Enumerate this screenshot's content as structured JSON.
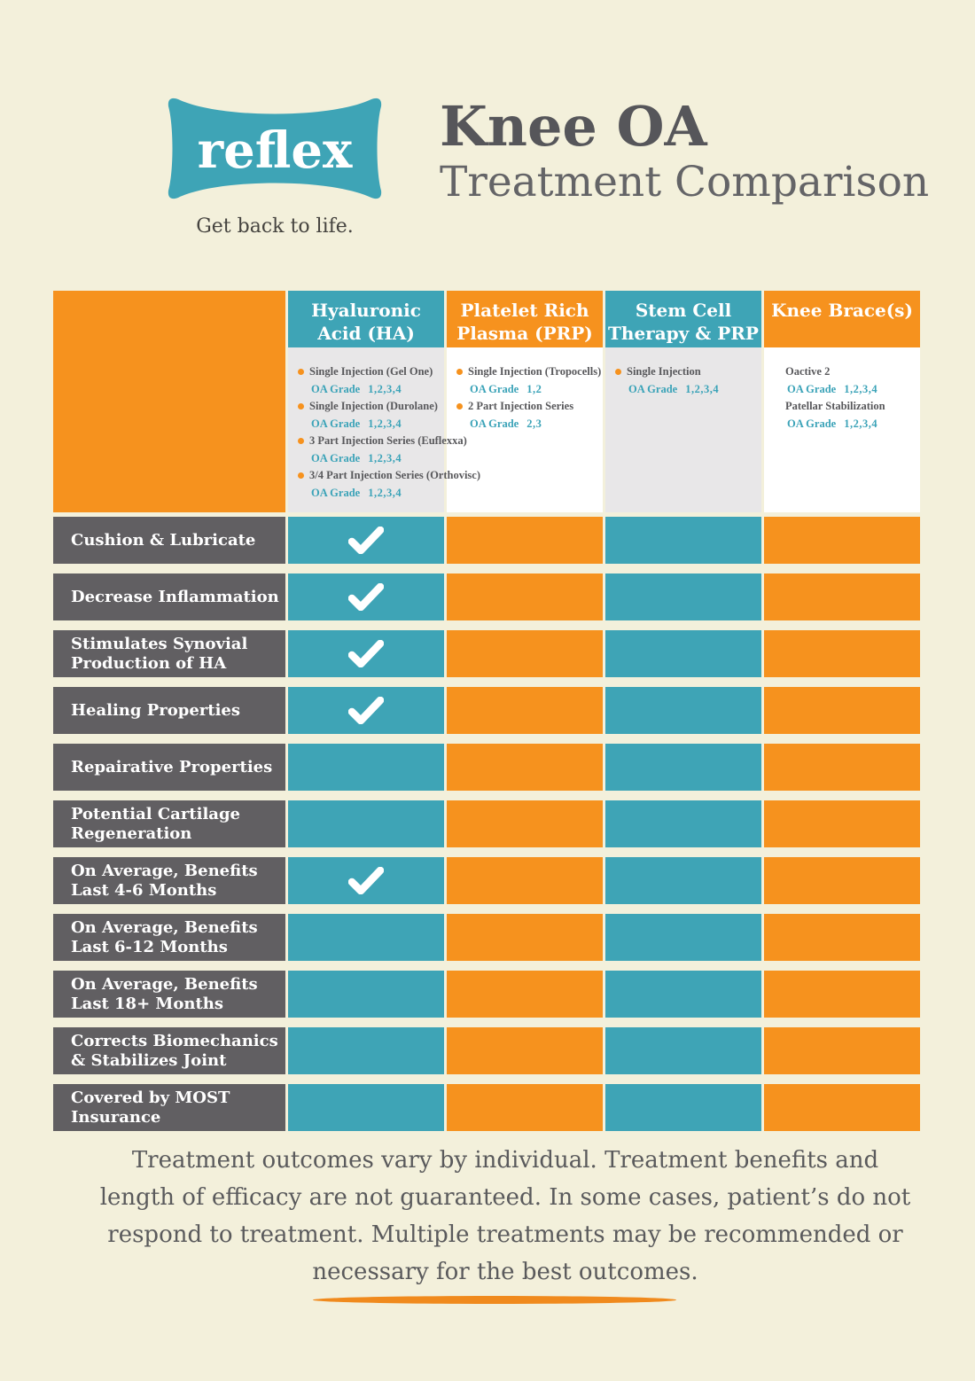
{
  "colors": {
    "orange": "#F6921E",
    "orange_dark": "#F08A1D",
    "teal": "#3EA4B6",
    "dark_gray_cell": "#615F62",
    "panel_gray": "#E8E7E8",
    "panel_white": "#FFFFFF",
    "item_text": "#58585B",
    "grade_text": "#3BA3B8",
    "check": "#FFFFFF",
    "background": "#F3F0DB"
  },
  "header": {
    "logo_text": "reflex",
    "tagline": "Get back to life.",
    "title": "Knee OA",
    "subtitle": "Treatment Comparison"
  },
  "table": {
    "columns": [
      {
        "id": "ha",
        "title_lines": [
          "Hyaluronic",
          "Acid (HA)"
        ],
        "header_color": "teal",
        "panel_color": "gray",
        "items": [
          {
            "bullet": true,
            "label": "Single Injection (Gel One)",
            "grade_label": "OA Grade",
            "grade_values": "1,2,3,4"
          },
          {
            "bullet": true,
            "label": "Single Injection (Durolane)",
            "grade_label": "OA Grade",
            "grade_values": "1,2,3,4"
          },
          {
            "bullet": true,
            "label": "3 Part Injection Series (Euflexxa)",
            "grade_label": "OA Grade",
            "grade_values": "1,2,3,4"
          },
          {
            "bullet": true,
            "label": "3/4 Part Injection Series (Orthovisc)",
            "grade_label": "OA Grade",
            "grade_values": "1,2,3,4"
          }
        ]
      },
      {
        "id": "prp",
        "title_lines": [
          "Platelet Rich",
          "Plasma (PRP)"
        ],
        "header_color": "orange",
        "panel_color": "white",
        "items": [
          {
            "bullet": true,
            "label": "Single Injection (Tropocells)",
            "grade_label": "OA Grade",
            "grade_values": "1,2"
          },
          {
            "bullet": true,
            "label": "2 Part Injection Series",
            "grade_label": "OA Grade",
            "grade_values": "2,3"
          }
        ]
      },
      {
        "id": "stem-cell",
        "title_lines": [
          "Stem Cell",
          "Therapy & PRP"
        ],
        "header_color": "teal",
        "panel_color": "gray",
        "items": [
          {
            "bullet": true,
            "label": "Single Injection",
            "grade_label": "OA Grade",
            "grade_values": "1,2,3,4"
          }
        ]
      },
      {
        "id": "knee-brace",
        "title_lines": [
          "Knee Brace(s)"
        ],
        "header_color": "orange",
        "panel_color": "white",
        "items": [
          {
            "bullet": false,
            "label": "Oactive 2",
            "grade_label": "OA Grade",
            "grade_values": "1,2,3,4"
          },
          {
            "bullet": false,
            "label": "Patellar Stabilization",
            "grade_label": "OA Grade",
            "grade_values": "1,2,3,4"
          }
        ]
      }
    ],
    "rows": [
      {
        "label_lines": [
          "Cushion & Lubricate"
        ],
        "checks": [
          true,
          false,
          false,
          false
        ]
      },
      {
        "label_lines": [
          "Decrease Inflammation"
        ],
        "checks": [
          true,
          false,
          false,
          false
        ]
      },
      {
        "label_lines": [
          "Stimulates Synovial",
          "Production of HA"
        ],
        "checks": [
          true,
          false,
          false,
          false
        ]
      },
      {
        "label_lines": [
          "Healing Properties"
        ],
        "checks": [
          true,
          false,
          false,
          false
        ]
      },
      {
        "label_lines": [
          "Repairative Properties"
        ],
        "checks": [
          false,
          false,
          false,
          false
        ]
      },
      {
        "label_lines": [
          "Potential Cartilage",
          "Regeneration"
        ],
        "checks": [
          false,
          false,
          false,
          false
        ]
      },
      {
        "label_lines": [
          "On Average, Benefits",
          "Last 4-6 Months"
        ],
        "checks": [
          true,
          false,
          false,
          false
        ]
      },
      {
        "label_lines": [
          "On Average, Benefits",
          "Last 6-12 Months"
        ],
        "checks": [
          false,
          false,
          false,
          false
        ]
      },
      {
        "label_lines": [
          "On Average, Benefits",
          "Last 18+ Months"
        ],
        "checks": [
          false,
          false,
          false,
          false
        ]
      },
      {
        "label_lines": [
          "Corrects Biomechanics",
          "& Stabilizes Joint"
        ],
        "checks": [
          false,
          false,
          false,
          false
        ]
      },
      {
        "label_lines": [
          "Covered by MOST",
          "Insurance"
        ],
        "checks": [
          false,
          false,
          false,
          false
        ]
      }
    ]
  },
  "footer": {
    "lines": [
      "Treatment outcomes vary by individual. Treatment benefits and",
      "length of efficacy are not guaranteed. In some cases, patient’s do not",
      "respond to treatment. Multiple treatments may be recommended or",
      "necessary for the best outcomes."
    ]
  }
}
